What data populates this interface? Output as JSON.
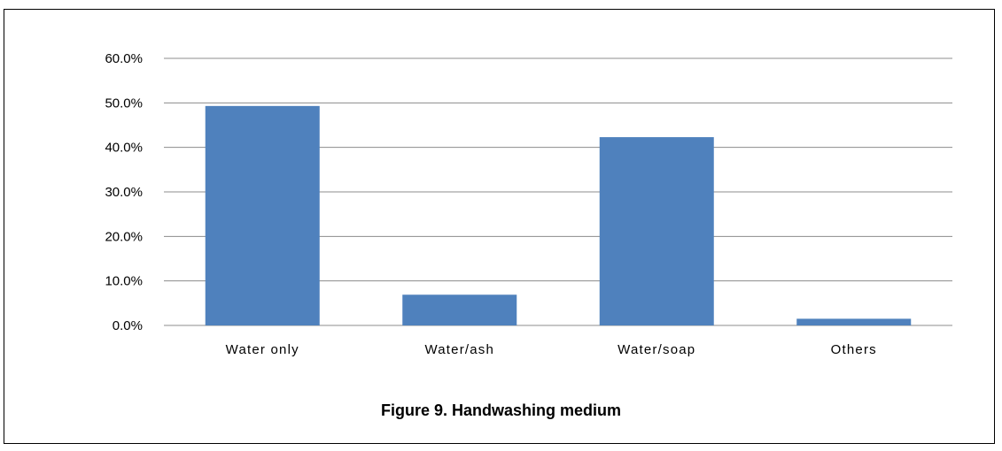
{
  "chart_data": {
    "type": "bar",
    "categories": [
      "Water only",
      "Water/ash",
      "Water/soap",
      "Others"
    ],
    "values": [
      49.3,
      6.9,
      42.3,
      1.5
    ],
    "ylim": [
      0,
      60
    ],
    "yticks": [
      0,
      10,
      20,
      30,
      40,
      50,
      60
    ],
    "ytick_labels": [
      "0.0%",
      "10.0%",
      "20.0%",
      "30.0%",
      "40.0%",
      "50.0%",
      "60.0%"
    ],
    "grid": true,
    "legend": "none",
    "bar_color": "#4f81bd",
    "gridline_color": "#8c8c8c"
  },
  "caption": "Figure 9. Handwashing medium"
}
